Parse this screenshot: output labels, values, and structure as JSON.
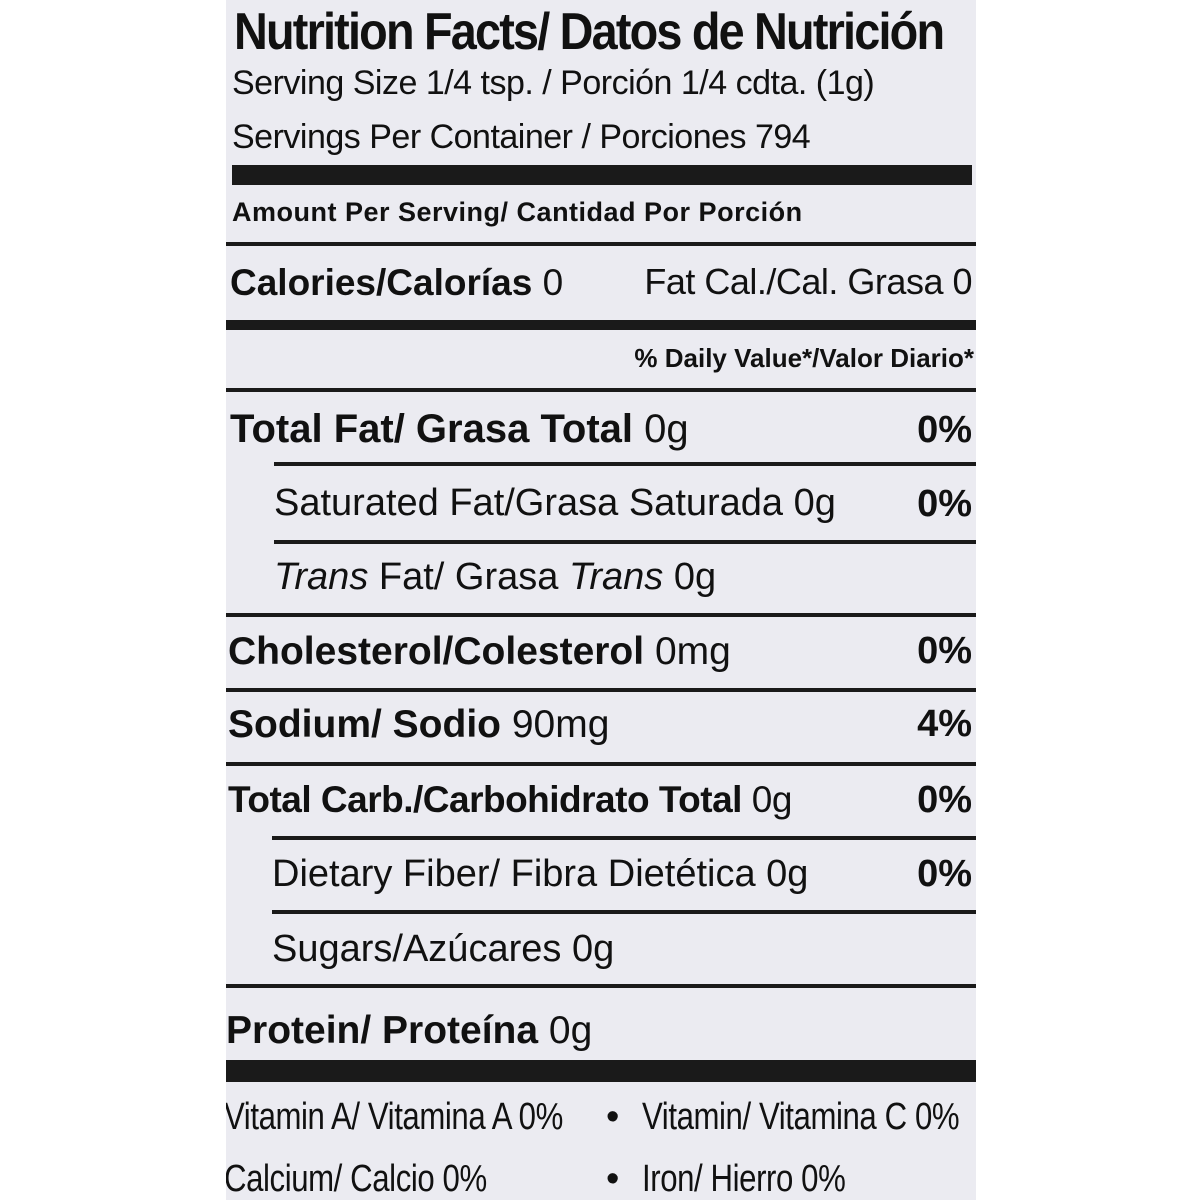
{
  "header": {
    "title": "Nutrition Facts/ Datos de Nutrición",
    "serving_size": "Serving Size 1/4 tsp. / Porción 1/4 cdta. (1g)",
    "servings_per_container": "Servings Per Container / Porciones 794"
  },
  "amount_per_serving": "Amount Per Serving/ Cantidad Por Porción",
  "calories": {
    "label": "Calories/Calorías",
    "value": "0",
    "fat_cal": "Fat Cal./Cal. Grasa 0"
  },
  "daily_value_header": "% Daily Value*/Valor Diario*",
  "nutrients": {
    "total_fat": {
      "label": "Total Fat/ Grasa Total",
      "amount": "0g",
      "dv": "0%"
    },
    "saturated_fat": {
      "label": "Saturated Fat/Grasa Saturada",
      "amount": "0g",
      "dv": "0%"
    },
    "trans_fat": {
      "label_italic_1": "Trans",
      "label_1": " Fat/ Grasa ",
      "label_italic_2": "Trans",
      "amount": "0g"
    },
    "cholesterol": {
      "label": "Cholesterol/Colesterol",
      "amount": "0mg",
      "dv": "0%"
    },
    "sodium": {
      "label": "Sodium/ Sodio",
      "amount": "90mg",
      "dv": "4%"
    },
    "total_carb": {
      "label": "Total Carb./Carbohidrato Total",
      "amount": "0g",
      "dv": "0%"
    },
    "dietary_fiber": {
      "label": "Dietary Fiber/ Fibra Dietética",
      "amount": "0g",
      "dv": "0%"
    },
    "sugars": {
      "label": "Sugars/Azúcares",
      "amount": "0g"
    },
    "protein": {
      "label": "Protein/ Proteína",
      "amount": "0g"
    }
  },
  "vitamins": {
    "vitamin_a": "Vitamin A/ Vitamina A 0%",
    "vitamin_c": "Vitamin/ Vitamina C 0%",
    "calcium": "Calcium/ Calcio 0%",
    "iron": "Iron/ Hierro 0%",
    "bullet": "•"
  }
}
